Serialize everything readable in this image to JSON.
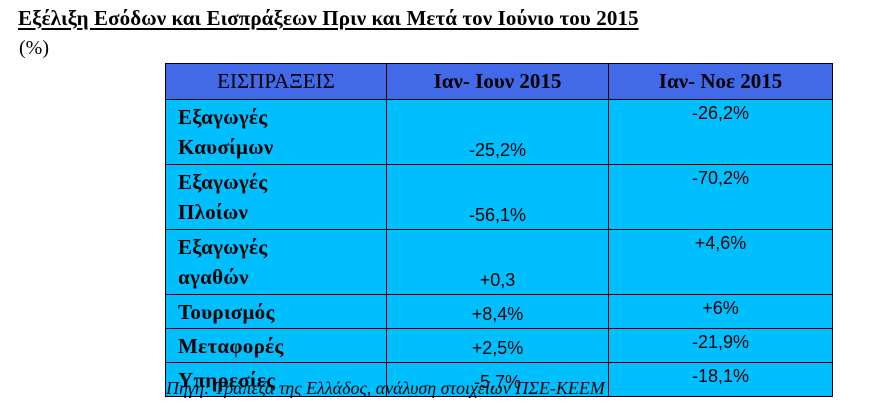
{
  "document": {
    "title": "Εξέλιξη Εσόδων και Εισπράξεων Πριν και Μετά τον Ιούνιο του 2015",
    "unit": "(%)",
    "source": "Πηγή: Τράπεζα της Ελλάδος, ανάλυση στοιχείων ΠΣΕ-ΚΕΕΜ"
  },
  "table": {
    "headers": [
      "ΕΙΣΠΡΑΞΕΙΣ",
      "Ιαν- Ιουν 2015",
      "Ιαν- Νοε 2015"
    ],
    "header_color": "#4169e8",
    "cell_color": "#00bfff",
    "rows": [
      {
        "label_line1": "Εξαγωγές",
        "label_line2": "Καυσίμων",
        "v1": "-25,2%",
        "v2": "-26,2%"
      },
      {
        "label_line1": "Εξαγωγές",
        "label_line2": "Πλοίων",
        "v1": "-56,1%",
        "v2": "-70,2%"
      },
      {
        "label_line1": "Εξαγωγές",
        "label_line2": "αγαθών",
        "v1": "+0,3",
        "v2": "+4,6%"
      },
      {
        "label_line1": "Τουρισμός",
        "v1": "+8,4%",
        "v2": "+6%"
      },
      {
        "label_line1": "Μεταφορές",
        "v1": "+2,5%",
        "v2": "-21,9%"
      },
      {
        "label_line1": "Υπηρεσίες",
        "v1": "-5,7%",
        "v2": "-18,1%"
      }
    ]
  }
}
